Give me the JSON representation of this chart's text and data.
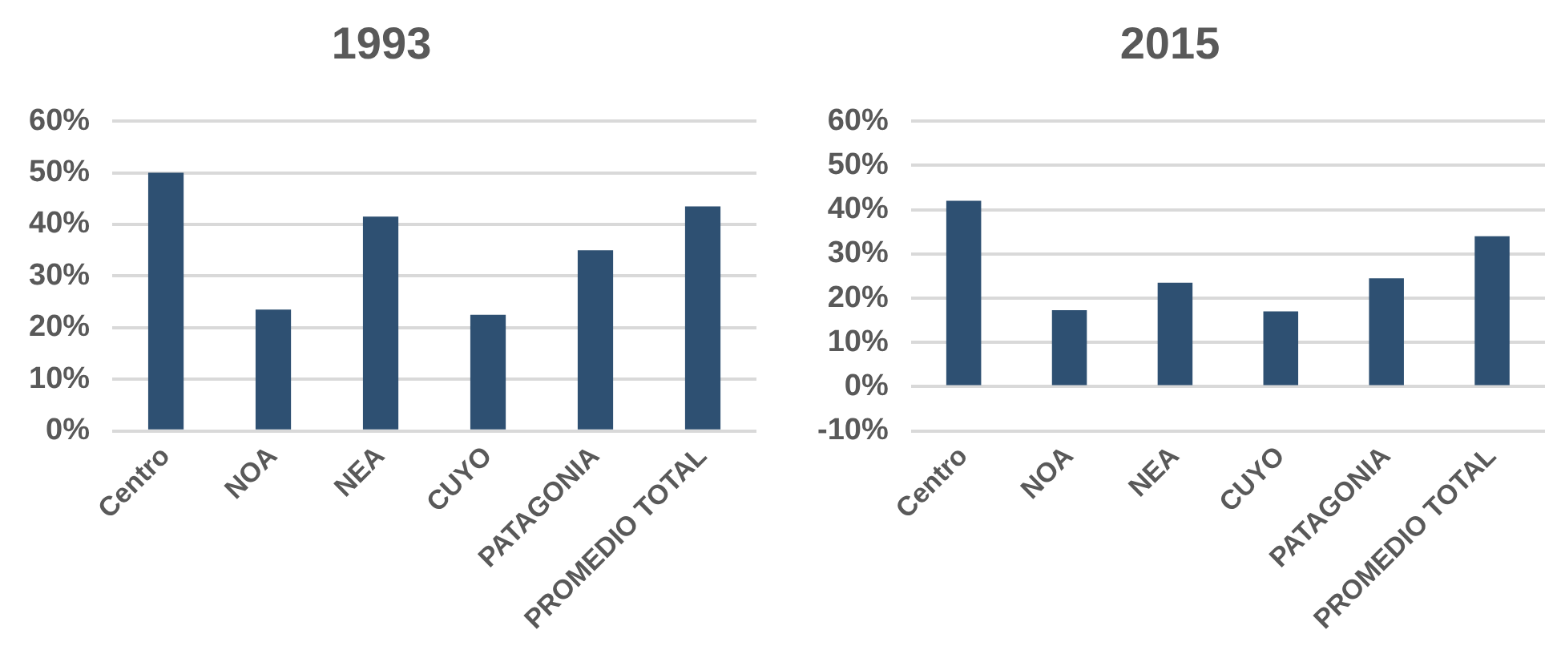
{
  "chart_data": [
    {
      "type": "bar",
      "title": "1993",
      "categories": [
        "Centro",
        "NOA",
        "NEA",
        "CUYO",
        "PATAGONIA",
        "PROMEDIO TOTAL"
      ],
      "values": [
        50,
        23.5,
        41.5,
        22.5,
        35,
        43.5
      ],
      "color": "#2e5072",
      "ylim": [
        0,
        60
      ],
      "yticks": [
        {
          "value": 0,
          "label": "0%"
        },
        {
          "value": 10,
          "label": "10%"
        },
        {
          "value": 20,
          "label": "20%"
        },
        {
          "value": 30,
          "label": "30%"
        },
        {
          "value": 40,
          "label": "40%"
        },
        {
          "value": 50,
          "label": "50%"
        },
        {
          "value": 60,
          "label": "60%"
        }
      ],
      "grid": "y"
    },
    {
      "type": "bar",
      "title": "2015",
      "categories": [
        "Centro",
        "NOA",
        "NEA",
        "CUYO",
        "PATAGONIA",
        "PROMEDIO TOTAL"
      ],
      "values": [
        42,
        17.3,
        23.5,
        17,
        24.5,
        34
      ],
      "color": "#2e5072",
      "ylim": [
        -10,
        60
      ],
      "yticks": [
        {
          "value": -10,
          "label": "-10%"
        },
        {
          "value": 0,
          "label": "0%"
        },
        {
          "value": 10,
          "label": "10%"
        },
        {
          "value": 20,
          "label": "20%"
        },
        {
          "value": 30,
          "label": "30%"
        },
        {
          "value": 40,
          "label": "40%"
        },
        {
          "value": 50,
          "label": "50%"
        },
        {
          "value": 60,
          "label": "60%"
        }
      ],
      "grid": "y"
    }
  ]
}
